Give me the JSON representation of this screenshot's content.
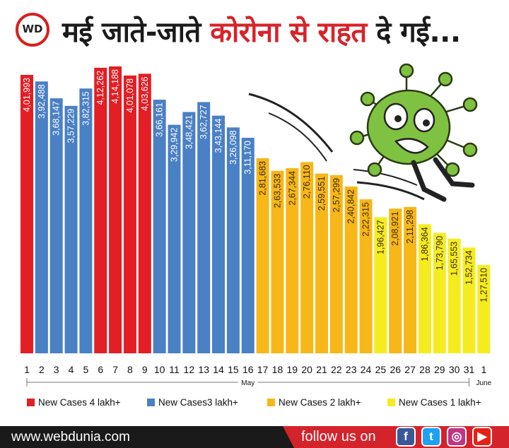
{
  "header": {
    "logo_text": "WD",
    "title_parts": [
      {
        "text": "मई जाते-जाते ",
        "color": "#1a1a1a"
      },
      {
        "text": "कोरोना से राहत",
        "color": "#d8232a"
      },
      {
        "text": " दे गई...",
        "color": "#1a1a1a"
      }
    ]
  },
  "colors": {
    "4lakh": "#e31e24",
    "3lakh": "#4a80c4",
    "2lakh": "#f7b718",
    "1lakh": "#f5ec1f"
  },
  "chart_data": {
    "type": "bar",
    "categories": [
      "1",
      "2",
      "3",
      "4",
      "5",
      "6",
      "7",
      "8",
      "9",
      "10",
      "11",
      "12",
      "13",
      "14",
      "15",
      "16",
      "17",
      "18",
      "19",
      "20",
      "21",
      "22",
      "23",
      "24",
      "25",
      "26",
      "27",
      "28",
      "29",
      "30",
      "31",
      "1"
    ],
    "values": [
      401993,
      392488,
      368147,
      357229,
      382315,
      412262,
      414188,
      401078,
      403626,
      366161,
      329942,
      348421,
      362727,
      343144,
      326098,
      311170,
      281683,
      263533,
      267344,
      276110,
      259551,
      257299,
      240842,
      222315,
      196427,
      208921,
      211298,
      186364,
      173790,
      165553,
      152734,
      127510
    ],
    "value_labels": [
      "4,01,993",
      "3,92,488",
      "3,68,147",
      "3,57,229",
      "3,82,315",
      "4,12,262",
      "4,14,188",
      "4,01,078",
      "4,03,626",
      "3,66,161",
      "3,29,942",
      "3,48,421",
      "3,62,727",
      "3,43,144",
      "3,26,098",
      "3,11,170",
      "2,81,683",
      "2,63,533",
      "2,67,344",
      "2,76,110",
      "2,59,551",
      "2,57,299",
      "2,40,842",
      "2,22,315",
      "1,96,427",
      "2,08,921",
      "2,11,298",
      "1,86,364",
      "1,73,790",
      "1,65,553",
      "1,52,734",
      "1,27,510"
    ],
    "groups": [
      "4lakh",
      "3lakh",
      "3lakh",
      "3lakh",
      "3lakh",
      "4lakh",
      "4lakh",
      "4lakh",
      "4lakh",
      "3lakh",
      "3lakh",
      "3lakh",
      "3lakh",
      "3lakh",
      "3lakh",
      "3lakh",
      "2lakh",
      "2lakh",
      "2lakh",
      "2lakh",
      "2lakh",
      "2lakh",
      "2lakh",
      "2lakh",
      "1lakh",
      "2lakh",
      "2lakh",
      "1lakh",
      "1lakh",
      "1lakh",
      "1lakh",
      "1lakh"
    ],
    "month_labels": [
      "May",
      "June"
    ],
    "ylim": [
      0,
      414188
    ],
    "legend": [
      {
        "label": "New Cases 4 lakh+",
        "group": "4lakh"
      },
      {
        "label": "New Cases3 lakh+",
        "group": "3lakh"
      },
      {
        "label": "New Cases 2 lakh+",
        "group": "2lakh"
      },
      {
        "label": "New Cases 1 lakh+",
        "group": "1lakh"
      }
    ]
  },
  "footer": {
    "site": "www.webdunia.com",
    "follow": "follow us on",
    "social": [
      {
        "name": "facebook-icon",
        "glyph": "f",
        "color": "#3b5998"
      },
      {
        "name": "twitter-icon",
        "glyph": "t",
        "color": "#1da1f2"
      },
      {
        "name": "instagram-icon",
        "glyph": "◎",
        "color": "#c13584"
      },
      {
        "name": "youtube-icon",
        "glyph": "▶",
        "color": "#e62117"
      }
    ]
  }
}
